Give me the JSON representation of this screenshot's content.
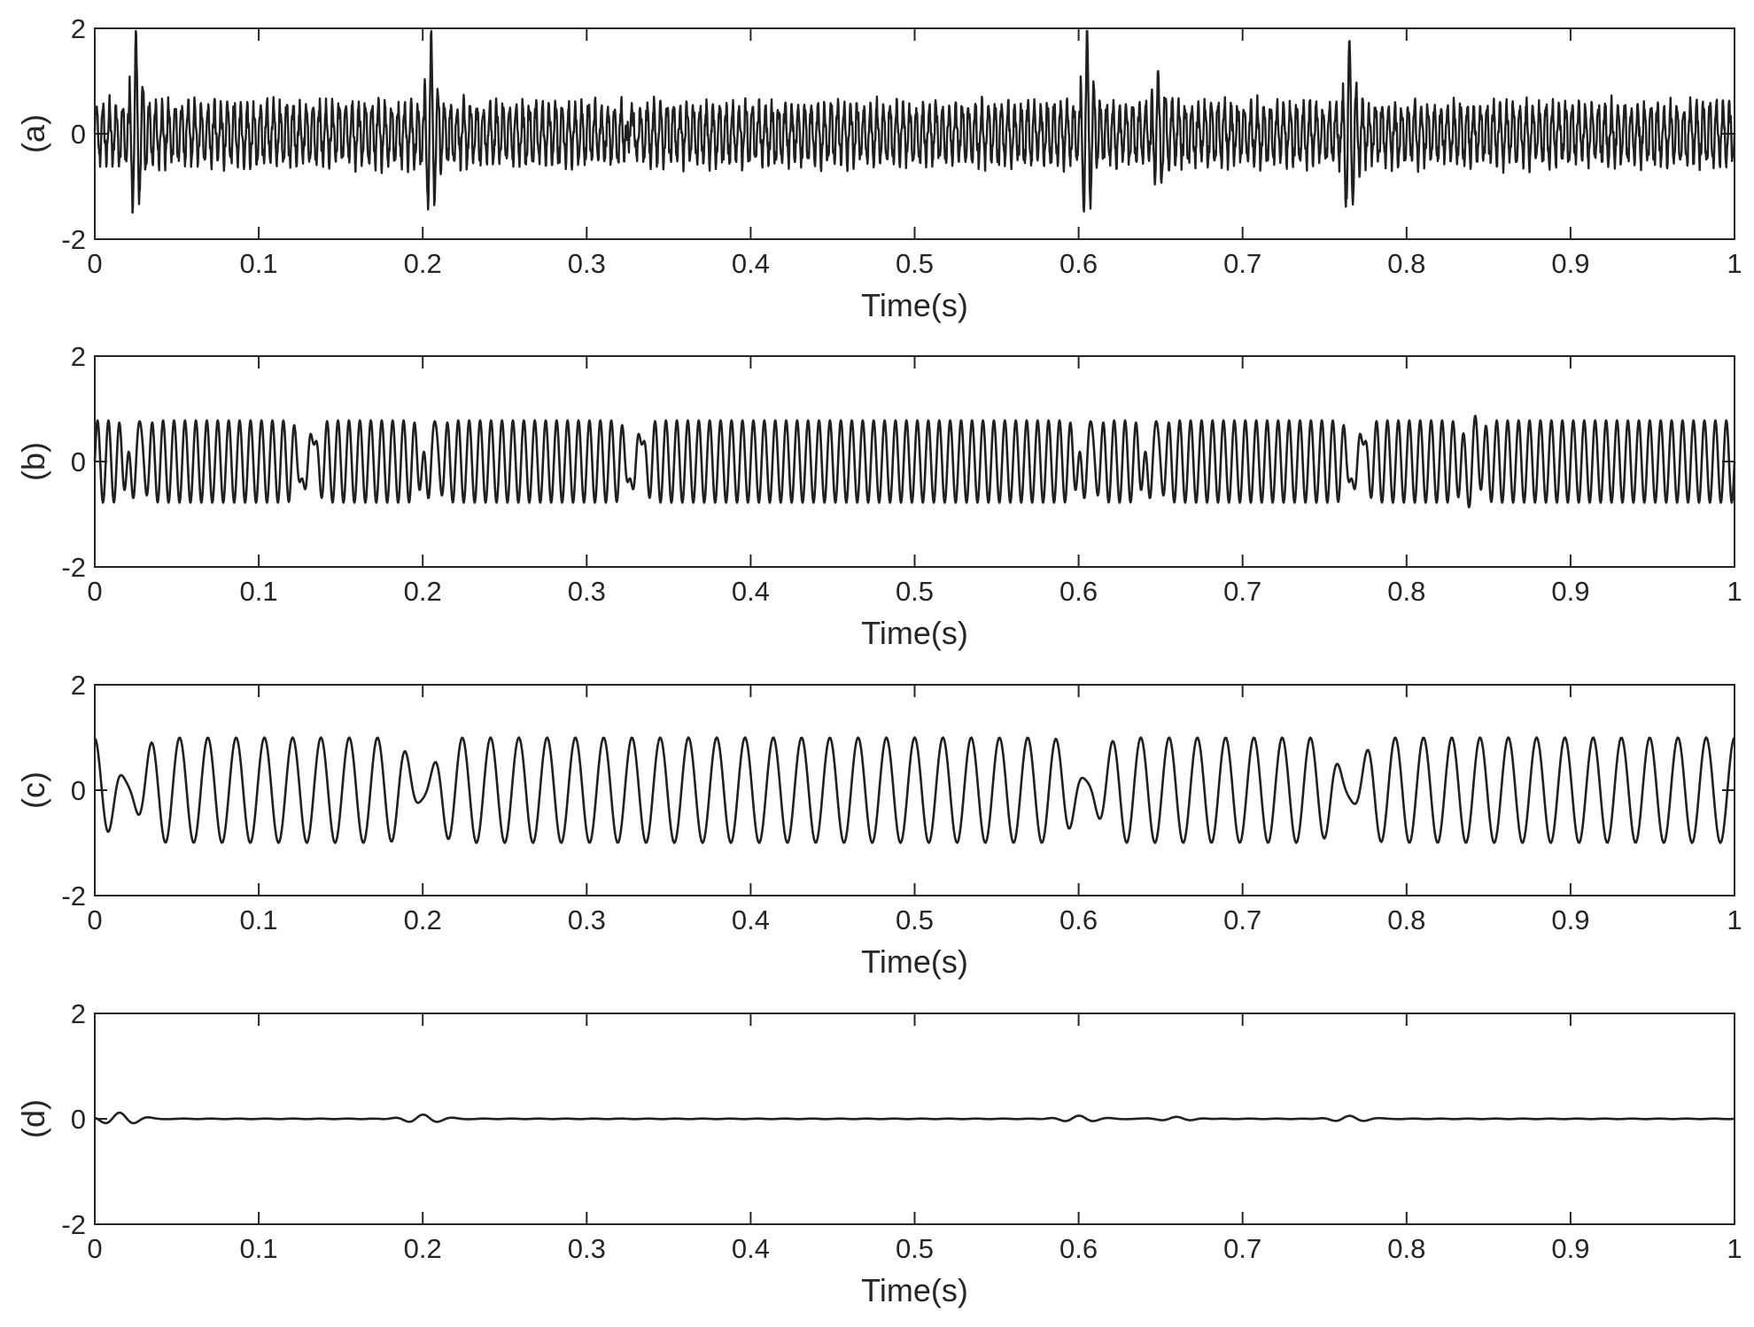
{
  "chart_data": [
    {
      "type": "line",
      "panel_label": "(a)",
      "xlabel": "Time(s)",
      "xlim": [
        0,
        1
      ],
      "ylim": [
        -2,
        2
      ],
      "x_ticks": [
        "0",
        "0.1",
        "0.2",
        "0.3",
        "0.4",
        "0.5",
        "0.6",
        "0.7",
        "0.8",
        "0.9",
        "1"
      ],
      "y_ticks": [
        "-2",
        "0",
        "2"
      ],
      "line_color": "#231f20",
      "series": [
        {
          "description": "noisy vibration signal with impulses",
          "base_amplitude": 0.5,
          "base_frequency_hz": 250,
          "impulses": [
            {
              "t": 0.025,
              "peak": 1.45
            },
            {
              "t": 0.205,
              "peak": 1.4
            },
            {
              "t": 0.327,
              "peak": 0.85
            },
            {
              "t": 0.605,
              "peak": 1.5
            },
            {
              "t": 0.648,
              "peak": 0.95
            },
            {
              "t": 0.765,
              "peak": 1.45
            }
          ]
        }
      ]
    },
    {
      "type": "line",
      "panel_label": "(b)",
      "xlabel": "Time(s)",
      "xlim": [
        0,
        1
      ],
      "ylim": [
        -2,
        2
      ],
      "x_ticks": [
        "0",
        "0.1",
        "0.2",
        "0.3",
        "0.4",
        "0.5",
        "0.6",
        "0.7",
        "0.8",
        "0.9",
        "1"
      ],
      "y_ticks": [
        "-2",
        "0",
        "2"
      ],
      "line_color": "#231f20",
      "series": [
        {
          "description": "band-limited component",
          "base_amplitude": 0.78,
          "base_frequency_hz": 150,
          "dips": [
            0.025,
            0.13,
            0.205,
            0.33,
            0.605,
            0.645,
            0.77,
            0.84
          ]
        }
      ]
    },
    {
      "type": "line",
      "panel_label": "(c)",
      "xlabel": "Time(s)",
      "xlim": [
        0,
        1
      ],
      "ylim": [
        -2,
        2
      ],
      "x_ticks": [
        "0",
        "0.1",
        "0.2",
        "0.3",
        "0.4",
        "0.5",
        "0.6",
        "0.7",
        "0.8",
        "0.9",
        "1"
      ],
      "y_ticks": [
        "-2",
        "0",
        "2"
      ],
      "line_color": "#231f20",
      "series": [
        {
          "description": "near-sinusoidal component",
          "base_amplitude": 1.0,
          "base_frequency_hz": 58,
          "dips": [
            0.02,
            0.2,
            0.605,
            0.765
          ]
        }
      ]
    },
    {
      "type": "line",
      "panel_label": "(d)",
      "xlabel": "Time(s)",
      "xlim": [
        0,
        1
      ],
      "ylim": [
        -2,
        2
      ],
      "x_ticks": [
        "0",
        "0.1",
        "0.2",
        "0.3",
        "0.4",
        "0.5",
        "0.6",
        "0.7",
        "0.8",
        "0.9",
        "1"
      ],
      "y_ticks": [
        "-2",
        "0",
        "2"
      ],
      "line_color": "#231f20",
      "series": [
        {
          "description": "residual low-amplitude component",
          "bursts": [
            {
              "t": 0.015,
              "amp": 0.12
            },
            {
              "t": 0.2,
              "amp": 0.08
            },
            {
              "t": 0.6,
              "amp": 0.06
            },
            {
              "t": 0.66,
              "amp": 0.04
            },
            {
              "t": 0.765,
              "amp": 0.06
            }
          ]
        }
      ]
    }
  ]
}
